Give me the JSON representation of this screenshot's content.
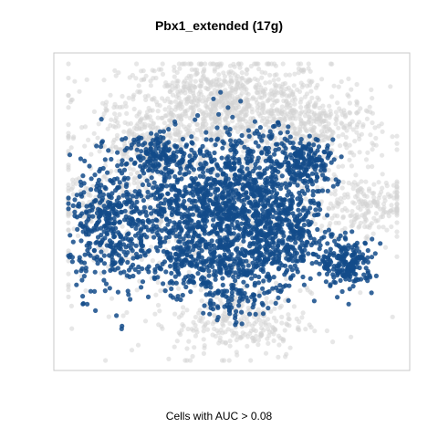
{
  "chart_data": {
    "type": "scatter",
    "title": "Pbx1_extended (17g)",
    "xlabel": "Cells with AUC > 0.08",
    "ylabel": "",
    "grid": false,
    "legend": "none",
    "colors": {
      "background_cells": "#d3d3d3",
      "highlight_cells": "#134b8a",
      "frame": "#c8c8c8"
    },
    "series": [
      {
        "name": "",
        "color": "#d3d3d3",
        "clusters": [
          {
            "cx": -0.05,
            "cy": 0.72,
            "sx": 0.32,
            "sy": 0.16,
            "n": 900
          },
          {
            "cx": -0.55,
            "cy": 0.45,
            "sx": 0.14,
            "sy": 0.12,
            "n": 160
          },
          {
            "cx": 0.55,
            "cy": 0.55,
            "sx": 0.18,
            "sy": 0.12,
            "n": 260
          },
          {
            "cx": 0.8,
            "cy": 0.05,
            "sx": 0.16,
            "sy": 0.1,
            "n": 200
          },
          {
            "cx": 0.05,
            "cy": -0.75,
            "sx": 0.2,
            "sy": 0.12,
            "n": 260
          },
          {
            "cx": -0.3,
            "cy": 0.05,
            "sx": 0.45,
            "sy": 0.35,
            "n": 700
          },
          {
            "cx": -0.85,
            "cy": 0.05,
            "sx": 0.06,
            "sy": 0.05,
            "n": 40
          }
        ]
      },
      {
        "name": "",
        "color": "#134b8a",
        "clusters": [
          {
            "cx": -0.75,
            "cy": -0.1,
            "sx": 0.12,
            "sy": 0.22,
            "n": 380
          },
          {
            "cx": -0.25,
            "cy": 0.05,
            "sx": 0.2,
            "sy": 0.22,
            "n": 650
          },
          {
            "cx": 0.15,
            "cy": 0.05,
            "sx": 0.18,
            "sy": 0.25,
            "n": 700
          },
          {
            "cx": 0.45,
            "cy": 0.35,
            "sx": 0.1,
            "sy": 0.08,
            "n": 160
          },
          {
            "cx": 0.7,
            "cy": -0.35,
            "sx": 0.08,
            "sy": 0.08,
            "n": 200
          },
          {
            "cx": -0.1,
            "cy": -0.35,
            "sx": 0.25,
            "sy": 0.12,
            "n": 350
          },
          {
            "cx": -0.45,
            "cy": 0.4,
            "sx": 0.1,
            "sy": 0.06,
            "n": 120
          },
          {
            "cx": 0.0,
            "cy": -0.6,
            "sx": 0.1,
            "sy": 0.08,
            "n": 60
          },
          {
            "cx": 0.35,
            "cy": -0.15,
            "sx": 0.12,
            "sy": 0.12,
            "n": 180
          }
        ]
      }
    ],
    "xlim": [
      -1,
      1
    ],
    "ylim": [
      -1,
      1
    ]
  }
}
